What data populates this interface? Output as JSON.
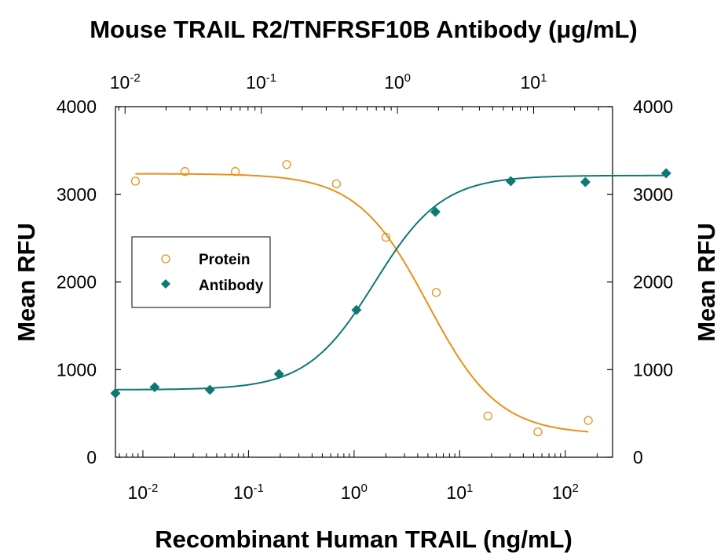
{
  "chart_data": {
    "type": "scatter",
    "title": "",
    "top_axis_label": "Mouse TRAIL R2/TNFRSF10B Antibody (μg/mL)",
    "xlabel": "Recombinant Human TRAIL (ng/mL)",
    "ylabel": "Mean RFU",
    "ylabel_right": "Mean RFU",
    "x_scale": "log",
    "xlim": [
      0.0055,
      280
    ],
    "ylim": [
      0,
      4000
    ],
    "top_xlim": [
      0.0085,
      38
    ],
    "x_ticks": [
      {
        "value": 0.01,
        "base": "10",
        "exp": "-2"
      },
      {
        "value": 0.1,
        "base": "10",
        "exp": "-1"
      },
      {
        "value": 1,
        "base": "10",
        "exp": "0"
      },
      {
        "value": 10,
        "base": "10",
        "exp": "1"
      },
      {
        "value": 100,
        "base": "10",
        "exp": "2"
      }
    ],
    "top_x_ticks": [
      {
        "value": 0.01,
        "base": "10",
        "exp": "-2"
      },
      {
        "value": 0.1,
        "base": "10",
        "exp": "-1"
      },
      {
        "value": 1,
        "base": "10",
        "exp": "0"
      },
      {
        "value": 10,
        "base": "10",
        "exp": "1"
      }
    ],
    "y_ticks": [
      "0",
      "1000",
      "2000",
      "3000",
      "4000"
    ],
    "y_tick_values": [
      0,
      1000,
      2000,
      3000,
      4000
    ],
    "legend_position": "middle-left",
    "grid": false,
    "series": [
      {
        "name": "Protein",
        "marker": "open-circle",
        "color": "#E8901A",
        "axis": "bottom",
        "x": [
          0.0085,
          0.025,
          0.075,
          0.23,
          0.68,
          2.0,
          6.0,
          18.5,
          55,
          165
        ],
        "y": [
          3150,
          3260,
          3260,
          3340,
          3120,
          2510,
          1880,
          470,
          290,
          420
        ],
        "fit": {
          "bottom": 260,
          "top": 3235,
          "ec50": 5.0,
          "hill": 1.3
        }
      },
      {
        "name": "Antibody",
        "marker": "filled-diamond",
        "color": "#0E7872",
        "axis": "top",
        "x": [
          0.0085,
          0.0165,
          0.042,
          0.135,
          0.5,
          1.9,
          6.8,
          24,
          94
        ],
        "y": [
          730,
          800,
          770,
          950,
          1680,
          2800,
          3150,
          3140,
          3240
        ],
        "fit": {
          "bottom": 770,
          "top": 3215,
          "ec50": 0.68,
          "hill": 1.75
        }
      }
    ]
  }
}
